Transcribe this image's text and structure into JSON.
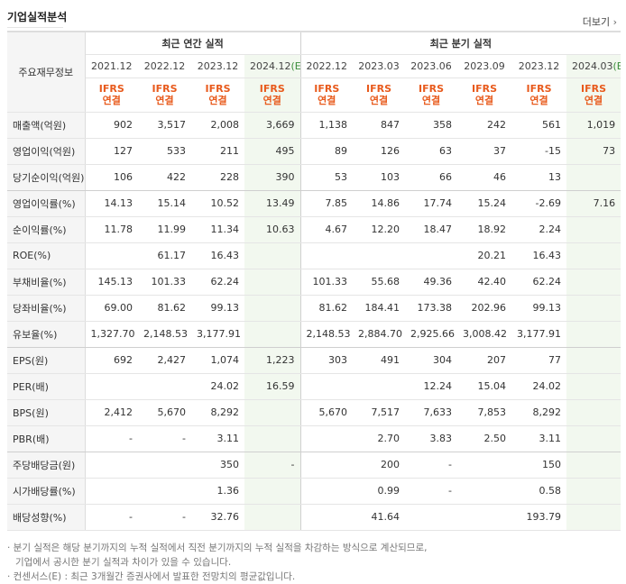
{
  "section": {
    "title": "기업실적분석",
    "more_label": "더보기"
  },
  "table": {
    "row_header_label": "주요재무정보",
    "group_labels": {
      "annual": "최근 연간 실적",
      "quarter": "최근 분기 실적"
    },
    "periods": [
      "2021.12",
      "2022.12",
      "2023.12",
      "2024.12",
      "2022.12",
      "2023.03",
      "2023.06",
      "2023.09",
      "2023.12",
      "2024.03"
    ],
    "estimate_suffix": "(E)",
    "basis_top": "IFRS",
    "basis_bottom": "연결",
    "rows": [
      {
        "label": "매출액(억원)",
        "values": [
          "902",
          "3,517",
          "2,008",
          "3,669",
          "1,138",
          "847",
          "358",
          "242",
          "561",
          "1,019"
        ]
      },
      {
        "label": "영업이익(억원)",
        "values": [
          "127",
          "533",
          "211",
          "495",
          "89",
          "126",
          "63",
          "37",
          "-15",
          "73"
        ]
      },
      {
        "label": "당기순이익(억원)",
        "values": [
          "106",
          "422",
          "228",
          "390",
          "53",
          "103",
          "66",
          "46",
          "13",
          ""
        ]
      },
      {
        "label": "영업이익률(%)",
        "values": [
          "14.13",
          "15.14",
          "10.52",
          "13.49",
          "7.85",
          "14.86",
          "17.74",
          "15.24",
          "-2.69",
          "7.16"
        ]
      },
      {
        "label": "순이익률(%)",
        "values": [
          "11.78",
          "11.99",
          "11.34",
          "10.63",
          "4.67",
          "12.20",
          "18.47",
          "18.92",
          "2.24",
          ""
        ]
      },
      {
        "label": "ROE(%)",
        "values": [
          "",
          "61.17",
          "16.43",
          "",
          "",
          "",
          "",
          "20.21",
          "16.43",
          ""
        ]
      },
      {
        "label": "부채비율(%)",
        "values": [
          "145.13",
          "101.33",
          "62.24",
          "",
          "101.33",
          "55.68",
          "49.36",
          "42.40",
          "62.24",
          ""
        ]
      },
      {
        "label": "당좌비율(%)",
        "values": [
          "69.00",
          "81.62",
          "99.13",
          "",
          "81.62",
          "184.41",
          "173.38",
          "202.96",
          "99.13",
          ""
        ]
      },
      {
        "label": "유보율(%)",
        "values": [
          "1,327.70",
          "2,148.53",
          "3,177.91",
          "",
          "2,148.53",
          "2,884.70",
          "2,925.66",
          "3,008.42",
          "3,177.91",
          ""
        ]
      },
      {
        "label": "EPS(원)",
        "values": [
          "692",
          "2,427",
          "1,074",
          "1,223",
          "303",
          "491",
          "304",
          "207",
          "77",
          ""
        ]
      },
      {
        "label": "PER(배)",
        "values": [
          "",
          "",
          "24.02",
          "16.59",
          "",
          "",
          "12.24",
          "15.04",
          "24.02",
          ""
        ]
      },
      {
        "label": "BPS(원)",
        "values": [
          "2,412",
          "5,670",
          "8,292",
          "",
          "5,670",
          "7,517",
          "7,633",
          "7,853",
          "8,292",
          ""
        ]
      },
      {
        "label": "PBR(배)",
        "values": [
          "-",
          "-",
          "3.11",
          "",
          "",
          "2.70",
          "3.83",
          "2.50",
          "3.11",
          ""
        ]
      },
      {
        "label": "주당배당금(원)",
        "values": [
          "",
          "",
          "350",
          "-",
          "",
          "200",
          "-",
          "",
          "150",
          ""
        ]
      },
      {
        "label": "시가배당률(%)",
        "values": [
          "",
          "",
          "1.36",
          "",
          "",
          "0.99",
          "-",
          "",
          "0.58",
          ""
        ]
      },
      {
        "label": "배당성향(%)",
        "values": [
          "-",
          "-",
          "32.76",
          "",
          "",
          "41.64",
          "",
          "",
          "193.79",
          ""
        ]
      }
    ]
  },
  "notes": {
    "line1": "· 분기 실적은 해당 분기까지의 누적 실적에서 직전 분기까지의 누적 실적을 차감하는 방식으로 계산되므로,",
    "line2": "기업에서 공시한 분기 실적과 차이가 있을 수 있습니다.",
    "line3": "· 컨센서스(E) : 최근 3개월간 증권사에서 발표한 전망치의 평균값입니다."
  }
}
